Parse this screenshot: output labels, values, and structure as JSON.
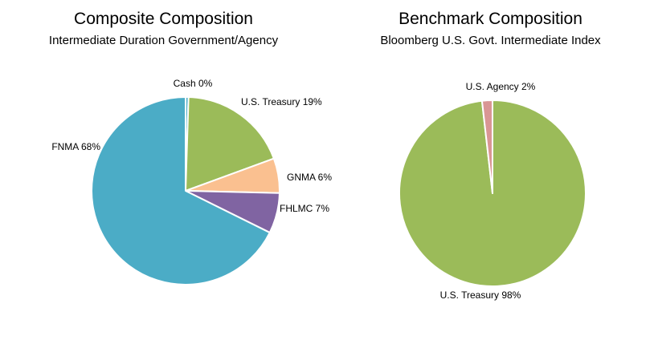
{
  "chart_data": [
    {
      "type": "pie",
      "title": "Composite Composition",
      "subtitle": "Intermediate Duration Government/Agency",
      "slices": [
        {
          "label": "Cash 0%",
          "value": 0.5,
          "color": "#4BACC6"
        },
        {
          "label": "U.S. Treasury 19%",
          "value": 19,
          "color": "#9BBB59"
        },
        {
          "label": "GNMA 6%",
          "value": 6,
          "color": "#FAC090"
        },
        {
          "label": "FHLMC 7%",
          "value": 7,
          "color": "#8064A2"
        },
        {
          "label": "FNMA 68%",
          "value": 68,
          "color": "#4BACC6"
        }
      ]
    },
    {
      "type": "pie",
      "title": "Benchmark Composition",
      "subtitle": "Bloomberg U.S. Govt. Intermediate Index",
      "slices": [
        {
          "label": "U.S. Treasury 98%",
          "value": 98.2,
          "color": "#9BBB59"
        },
        {
          "label": "U.S. Agency 2%",
          "value": 1.8,
          "color": "#D99694"
        }
      ]
    }
  ]
}
